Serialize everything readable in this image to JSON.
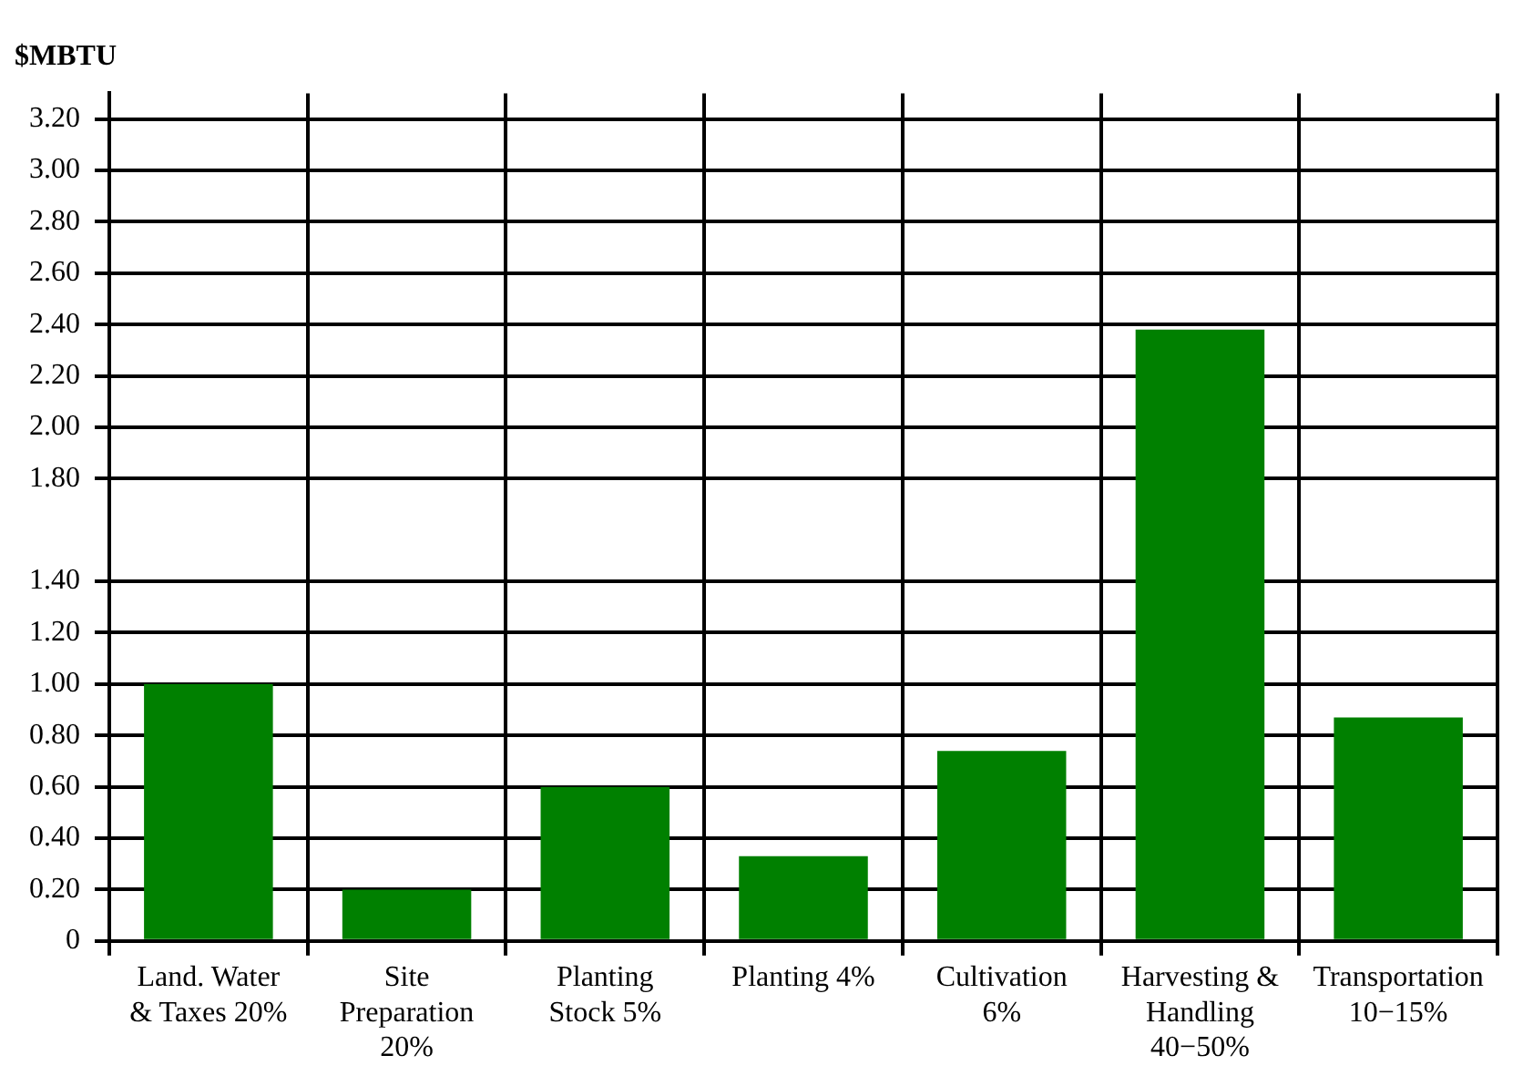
{
  "chart_data": {
    "type": "bar",
    "ylabel": "$MBTU",
    "categories": [
      "Land. Water & Taxes 20%",
      "Site Preparation 20%",
      "Planting Stock 5%",
      "Planting 4%",
      "Cultivation 6%",
      "Harvesting & Handling 40−50%",
      "Transportation 10−15%"
    ],
    "values": [
      1.0,
      0.2,
      0.6,
      0.33,
      0.74,
      2.38,
      0.87
    ],
    "color": "#008000",
    "ylim": [
      0,
      3.3
    ],
    "yticks": [
      {
        "value": 0,
        "label": "0"
      },
      {
        "value": 0.2,
        "label": "0.20"
      },
      {
        "value": 0.4,
        "label": "0.40"
      },
      {
        "value": 0.6,
        "label": "0.60"
      },
      {
        "value": 0.8,
        "label": "0.80"
      },
      {
        "value": 1,
        "label": "1.00"
      },
      {
        "value": 1.2,
        "label": "1.20"
      },
      {
        "value": 1.4,
        "label": "1.40"
      },
      {
        "value": 1.8,
        "label": "1.80"
      },
      {
        "value": 2,
        "label": "2.00"
      },
      {
        "value": 2.2,
        "label": "2.20"
      },
      {
        "value": 2.4,
        "label": "2.40"
      },
      {
        "value": 2.6,
        "label": "2.60"
      },
      {
        "value": 2.8,
        "label": "2.80"
      },
      {
        "value": 3,
        "label": "3.00"
      },
      {
        "value": 3.2,
        "label": "3.20"
      }
    ],
    "grid": true,
    "legend": false
  }
}
